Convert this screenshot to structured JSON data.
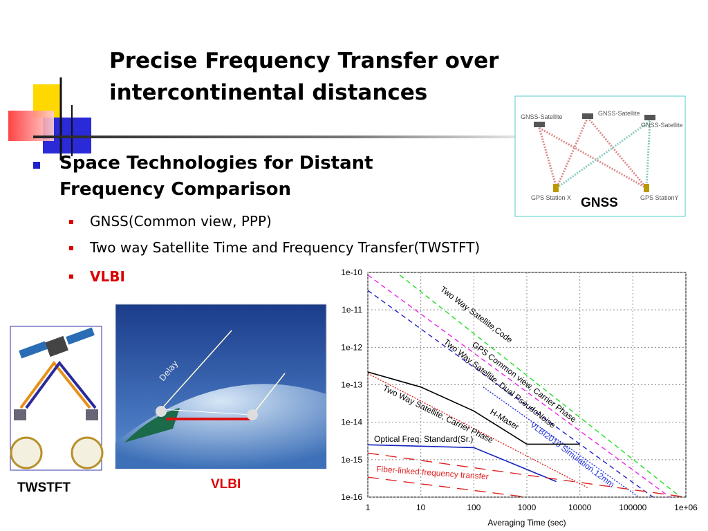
{
  "title": [
    "Precise Frequency Transfer over",
    "intercontinental distances"
  ],
  "heading": [
    "Space Technologies for Distant",
    "Frequency Comparison"
  ],
  "bullets": [
    "GNSS(Common view, PPP)",
    "Two way Satellite Time and Frequency Transfer(TWSTFT)",
    "VLBI"
  ],
  "gnss_figure": {
    "satellites": [
      "GNSS-Satellite",
      "GNSS-Satellite",
      "GNSS-Satellite"
    ],
    "stations": [
      "GPS Station X",
      "GPS StationY"
    ],
    "caption": "GNSS"
  },
  "twstft_figure": {
    "caption": "TWSTFT"
  },
  "vlbi_figure": {
    "label": "Delay",
    "caption": "VLBI"
  },
  "chart_data": {
    "type": "line",
    "x_label": "Averaging Time (sec)",
    "log_x": true,
    "log_y": true,
    "grid": true,
    "xlim": [
      1,
      1000000
    ],
    "ylim": [
      1e-16,
      1e-10
    ],
    "xticks": [
      1,
      10,
      100,
      1000,
      10000,
      100000,
      {
        "value": 1000000,
        "label": "1e+06"
      }
    ],
    "yticks": [
      {
        "value": 1e-16,
        "label": "1e-16"
      },
      {
        "value": 1e-15,
        "label": "1e-15"
      },
      {
        "value": 1e-14,
        "label": "1e-14"
      },
      {
        "value": 1e-13,
        "label": "1e-13"
      },
      {
        "value": 1e-12,
        "label": "1e-12"
      },
      {
        "value": 1e-11,
        "label": "1e-11"
      },
      {
        "value": 1e-10,
        "label": "1e-10"
      }
    ],
    "series": [
      {
        "name": "Two Way Satellite,Code",
        "color": "#22dd22",
        "style": "dashed",
        "x": [
          4,
          800000
        ],
        "values": [
          8.5e-11,
          1e-16
        ]
      },
      {
        "name": "GPS Common view, Carrier Phase",
        "color": "#ee22ee",
        "style": "dashed",
        "x": [
          1,
          500000
        ],
        "values": [
          8.5e-11,
          1e-16
        ]
      },
      {
        "name": "Two Way Satellite, Dual PseudoNoise",
        "color": "#2222cc",
        "style": "dashed",
        "x": [
          1,
          240000
        ],
        "values": [
          3.3e-11,
          1e-16
        ]
      },
      {
        "name": "VLBI2010 Simulation,12mm",
        "color": "#2233dd",
        "style": "dotted",
        "x": [
          150,
          130000
        ],
        "values": [
          8.7e-14,
          1e-16
        ]
      },
      {
        "name": "H-Maser",
        "color": "#000000",
        "style": "solid",
        "x": [
          1,
          10,
          100,
          1000,
          10000
        ],
        "values": [
          2.2e-13,
          8.7e-14,
          2e-14,
          2.6e-15,
          2.6e-15
        ]
      },
      {
        "name": "Two Way Satellite, Carrier Phase",
        "color": "#dd2222",
        "style": "dotted",
        "x": [
          1,
          14000
        ],
        "values": [
          2e-13,
          1.8e-16
        ]
      },
      {
        "name": "Optical Freq. Standard(Sr.)",
        "color": "#1122bb",
        "style": "solid",
        "x": [
          1,
          100,
          3600
        ],
        "values": [
          2.5e-15,
          2.1e-15,
          2.6e-16
        ]
      },
      {
        "name": "Fiber-linked frequency transfer",
        "color": "#dd2222",
        "style": "longdash",
        "x": [
          1,
          1000000
        ],
        "values": [
          1.5e-15,
          1e-16
        ]
      },
      {
        "color": "#dd2222",
        "style": "longdash",
        "x": [
          1,
          1000
        ],
        "values": [
          3.4e-16,
          1e-16
        ]
      }
    ]
  }
}
